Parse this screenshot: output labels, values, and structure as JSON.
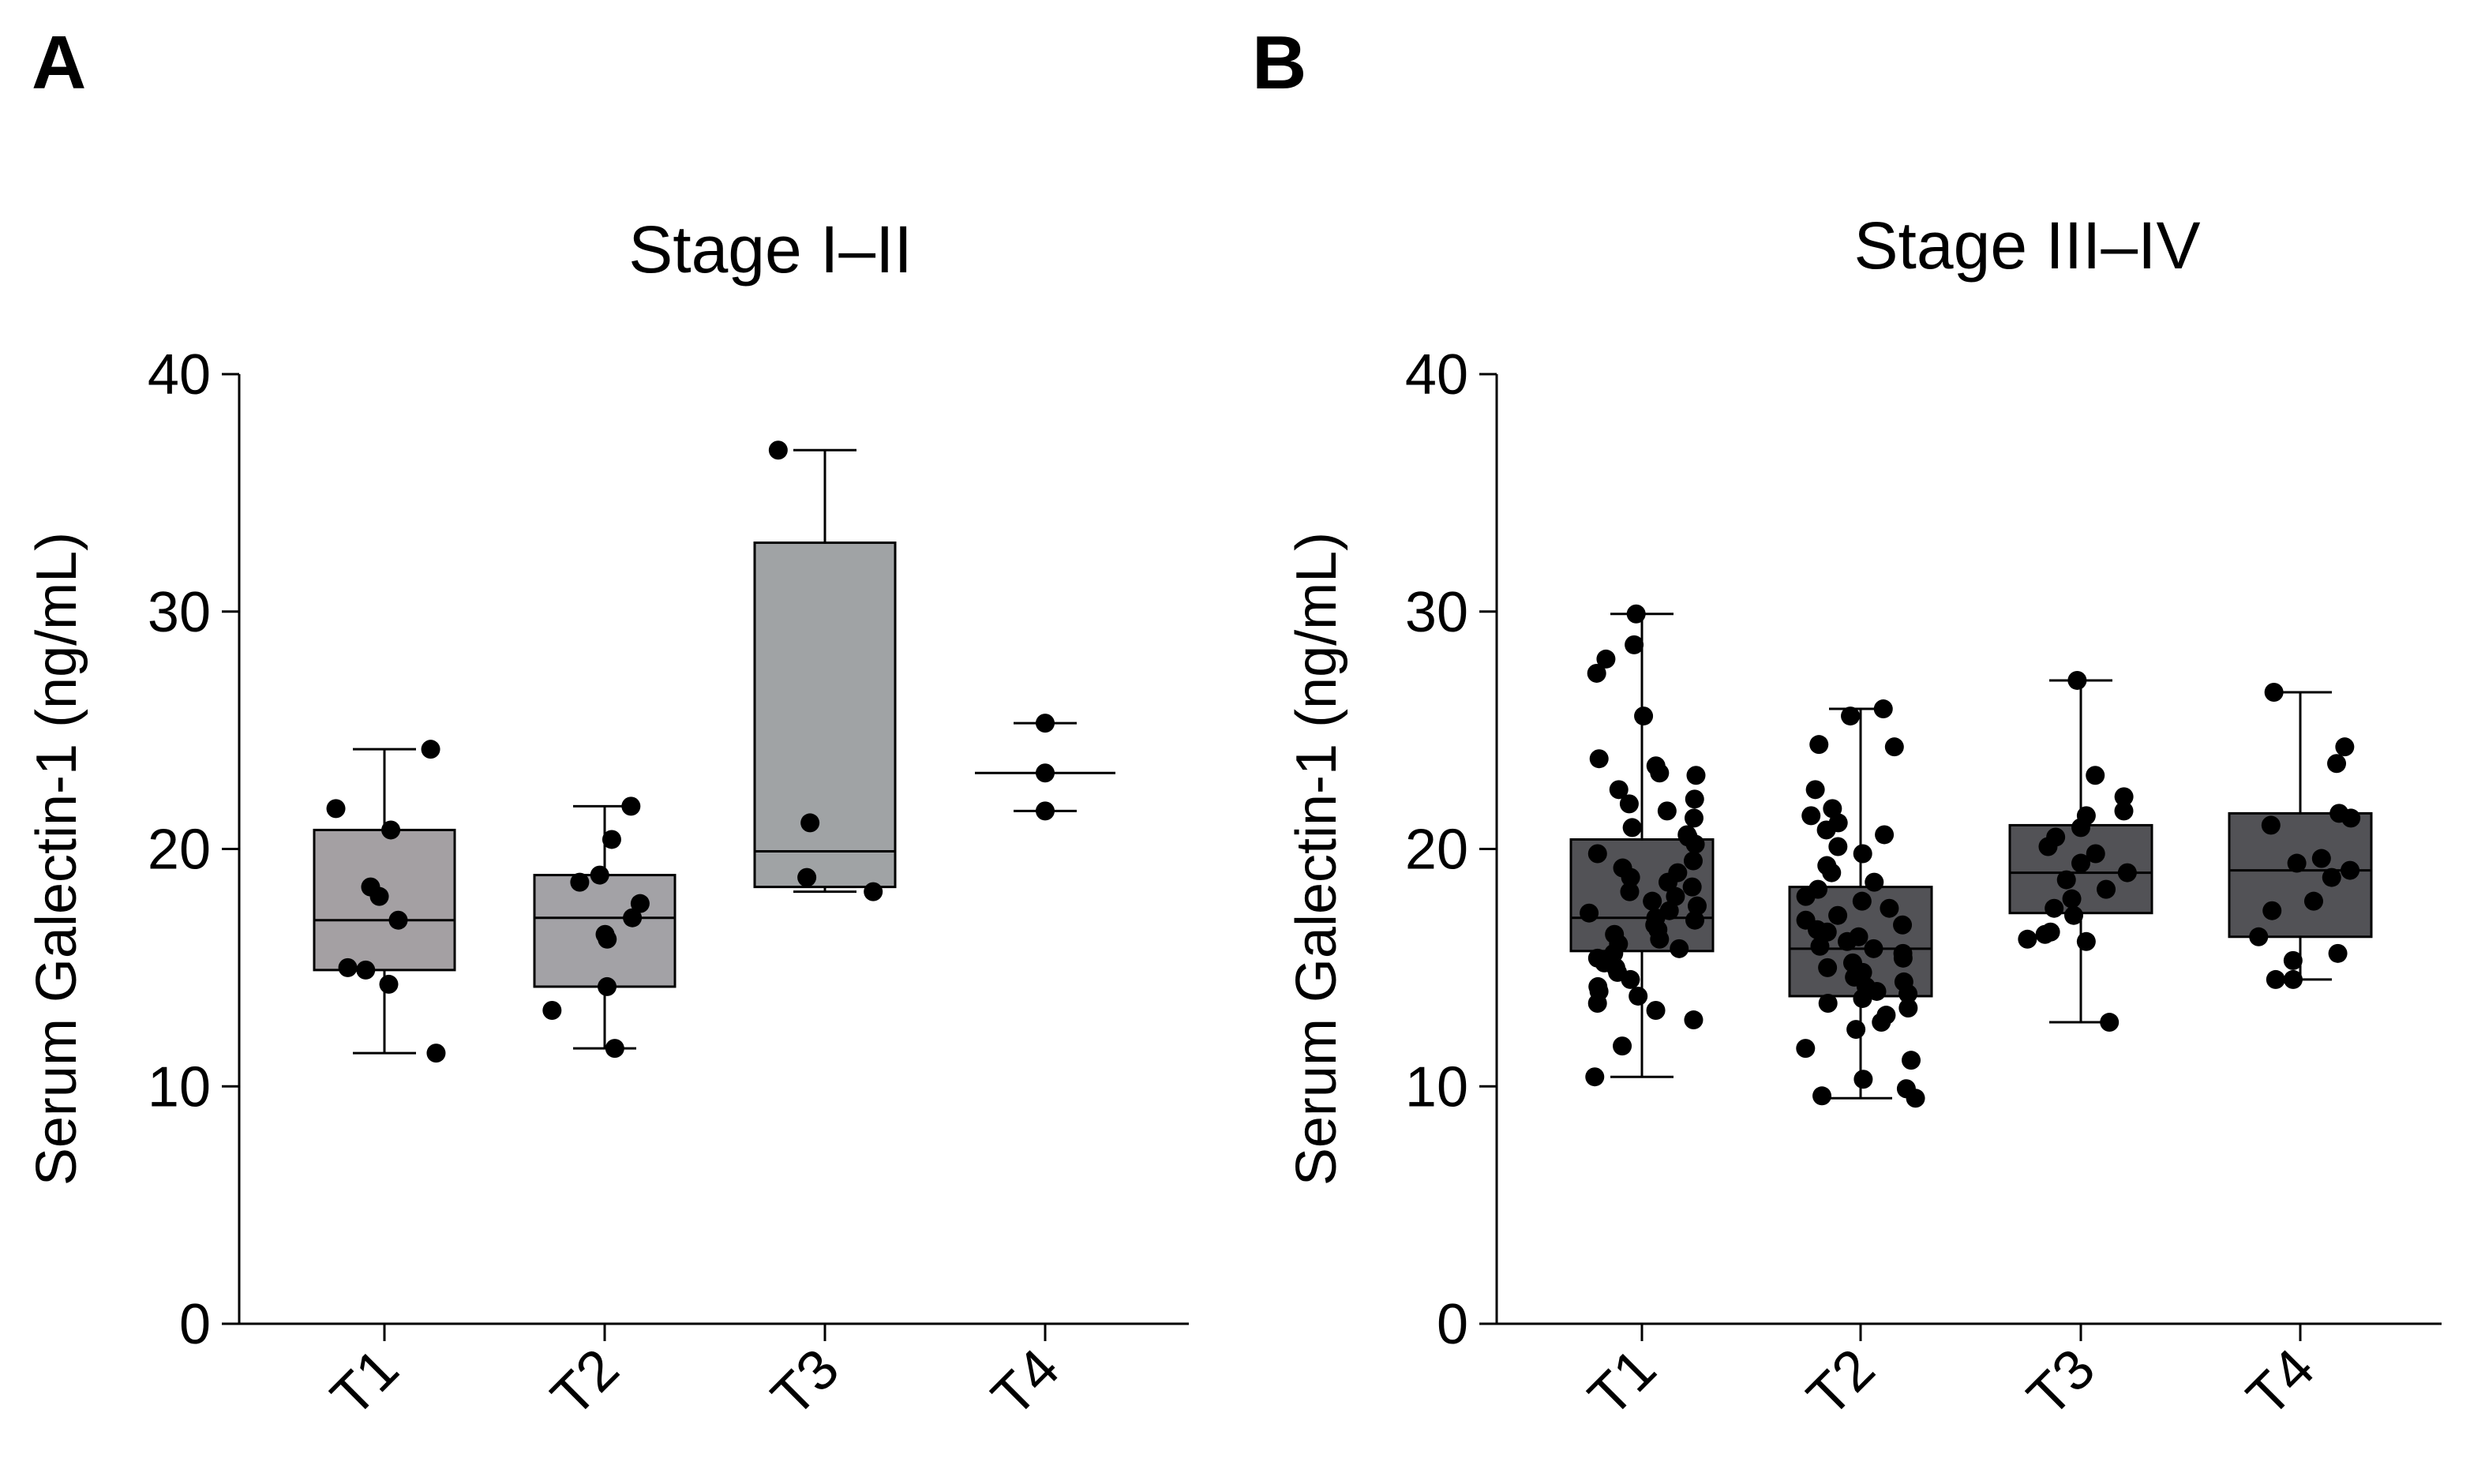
{
  "chart_data": [
    {
      "type": "box",
      "panel_label": "A",
      "title": "Stage I–II",
      "ylabel": "Serum Galectin-1 (ng/mL)",
      "xlabel": "",
      "ylim": [
        0,
        40
      ],
      "yticks": [
        "0",
        "10",
        "20",
        "30",
        "40"
      ],
      "box_color": "#a4a0a3",
      "categories": [
        "T1",
        "T2",
        "T3",
        "T4"
      ],
      "groups": [
        {
          "name": "T1",
          "box": true,
          "fill": "#a4a0a3",
          "min": 11.4,
          "q1": 14.9,
          "median": 17.0,
          "q3": 20.8,
          "max": 24.2,
          "points": [
            24.2,
            21.7,
            20.8,
            18.4,
            18.0,
            17.0,
            15.0,
            14.9,
            14.3,
            11.4
          ]
        },
        {
          "name": "T2",
          "box": true,
          "fill": "#a3a2a6",
          "min": 11.6,
          "q1": 14.2,
          "median": 17.1,
          "q3": 18.9,
          "max": 21.8,
          "points": [
            21.8,
            20.4,
            18.9,
            18.6,
            17.7,
            17.1,
            16.4,
            16.2,
            14.2,
            13.2,
            11.6
          ]
        },
        {
          "name": "T3",
          "box": true,
          "fill": "#a0a3a5",
          "min": 18.2,
          "q1": 18.4,
          "median": 19.9,
          "q3": 32.9,
          "max": 36.8,
          "points": [
            36.8,
            21.1,
            18.8,
            18.2
          ]
        },
        {
          "name": "T4",
          "box": false,
          "fill": "#ffffff",
          "min": 21.6,
          "q1": 21.6,
          "median": 23.2,
          "q3": 25.3,
          "max": 25.3,
          "points": [
            25.3,
            23.2,
            21.6
          ]
        }
      ]
    },
    {
      "type": "box",
      "panel_label": "B",
      "title": "Stage III–IV",
      "ylabel": "Serum Galectin-1 (ng/mL)",
      "xlabel": "",
      "ylim": [
        0,
        40
      ],
      "yticks": [
        "0",
        "10",
        "20",
        "30",
        "40"
      ],
      "box_color": "#525256",
      "categories": [
        "T1",
        "T2",
        "T3",
        "T4"
      ],
      "groups": [
        {
          "name": "T1",
          "box": true,
          "fill": "#525256",
          "min": 10.4,
          "q1": 15.7,
          "median": 17.1,
          "q3": 20.4,
          "max": 29.9,
          "points": [
            29.9,
            28.6,
            28.0,
            27.4,
            25.6,
            23.8,
            23.5,
            23.2,
            23.1,
            22.5,
            22.1,
            21.9,
            21.6,
            21.3,
            20.9,
            20.6,
            20.5,
            20.2,
            19.8,
            19.5,
            19.2,
            19.0,
            18.8,
            18.6,
            18.4,
            18.2,
            18.0,
            17.8,
            17.6,
            17.4,
            17.3,
            17.1,
            17.0,
            16.8,
            16.6,
            16.4,
            16.2,
            16.0,
            15.8,
            15.6,
            15.4,
            15.2,
            15.0,
            14.8,
            14.5,
            14.2,
            14.0,
            13.8,
            13.5,
            13.2,
            12.8,
            11.7,
            10.4
          ]
        },
        {
          "name": "T2",
          "box": true,
          "fill": "#525256",
          "min": 9.5,
          "q1": 13.8,
          "median": 15.8,
          "q3": 18.4,
          "max": 25.9,
          "points": [
            25.9,
            25.6,
            24.4,
            24.3,
            22.5,
            21.7,
            21.4,
            21.1,
            20.8,
            20.6,
            20.1,
            19.8,
            19.3,
            19.0,
            18.6,
            18.3,
            18.0,
            17.8,
            17.5,
            17.2,
            17.0,
            16.8,
            16.6,
            16.5,
            16.3,
            16.1,
            15.9,
            15.8,
            15.6,
            15.4,
            15.2,
            15.0,
            14.8,
            14.6,
            14.4,
            14.2,
            14.0,
            13.9,
            13.7,
            13.5,
            13.3,
            13.0,
            12.7,
            12.4,
            11.6,
            11.1,
            10.3,
            9.9,
            9.6,
            9.5
          ]
        },
        {
          "name": "T3",
          "box": true,
          "fill": "#525256",
          "min": 12.7,
          "q1": 17.3,
          "median": 19.0,
          "q3": 21.0,
          "max": 27.1,
          "points": [
            27.1,
            23.1,
            22.2,
            21.6,
            21.4,
            20.9,
            20.5,
            20.1,
            19.8,
            19.4,
            19.0,
            18.7,
            18.3,
            17.9,
            17.5,
            17.2,
            16.5,
            16.4,
            16.2,
            16.1,
            12.7
          ]
        },
        {
          "name": "T4",
          "box": true,
          "fill": "#525256",
          "min": 14.5,
          "q1": 16.3,
          "median": 19.1,
          "q3": 21.5,
          "max": 26.6,
          "points": [
            26.6,
            24.3,
            23.6,
            21.5,
            21.3,
            21.0,
            19.6,
            19.4,
            19.1,
            18.8,
            17.8,
            17.4,
            16.3,
            15.6,
            15.3,
            14.5,
            14.5
          ]
        }
      ]
    }
  ]
}
